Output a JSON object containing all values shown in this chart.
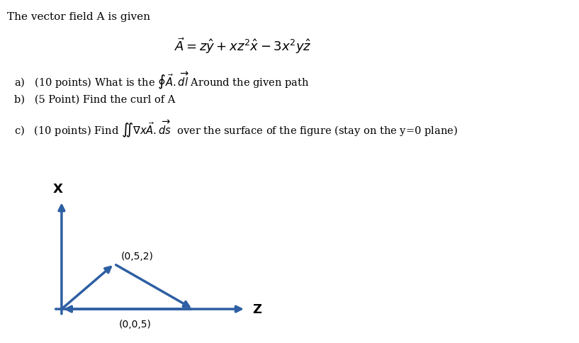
{
  "title_text": "The vector field A is given",
  "formula": "$\\vec{A} = z\\hat{y} + xz^2\\hat{x} - 3x^2y\\hat{z}$",
  "line_a": "a)   (10 points) What is the $\\oint \\vec{A}.\\overrightarrow{dl}$ Around the given path",
  "line_b": "b)   (5 Point) Find the curl of A",
  "line_c": "c)   (10 points) Find $\\iint \\nabla x\\vec{A}.\\overrightarrow{ds}$  over the surface of the figure (stay on the y=0 plane)",
  "arrow_color": "#2E5FA3",
  "bg_color": "#ffffff",
  "text_color": "#000000",
  "point_label_top": "(0,5,2)",
  "point_label_bot": "(0,0,5)",
  "axis_label_x": "X",
  "axis_label_z": "Z",
  "title_fontsize": 11,
  "formula_fontsize": 13,
  "question_fontsize": 10.5,
  "axis_label_fontsize": 13,
  "point_label_fontsize": 10
}
